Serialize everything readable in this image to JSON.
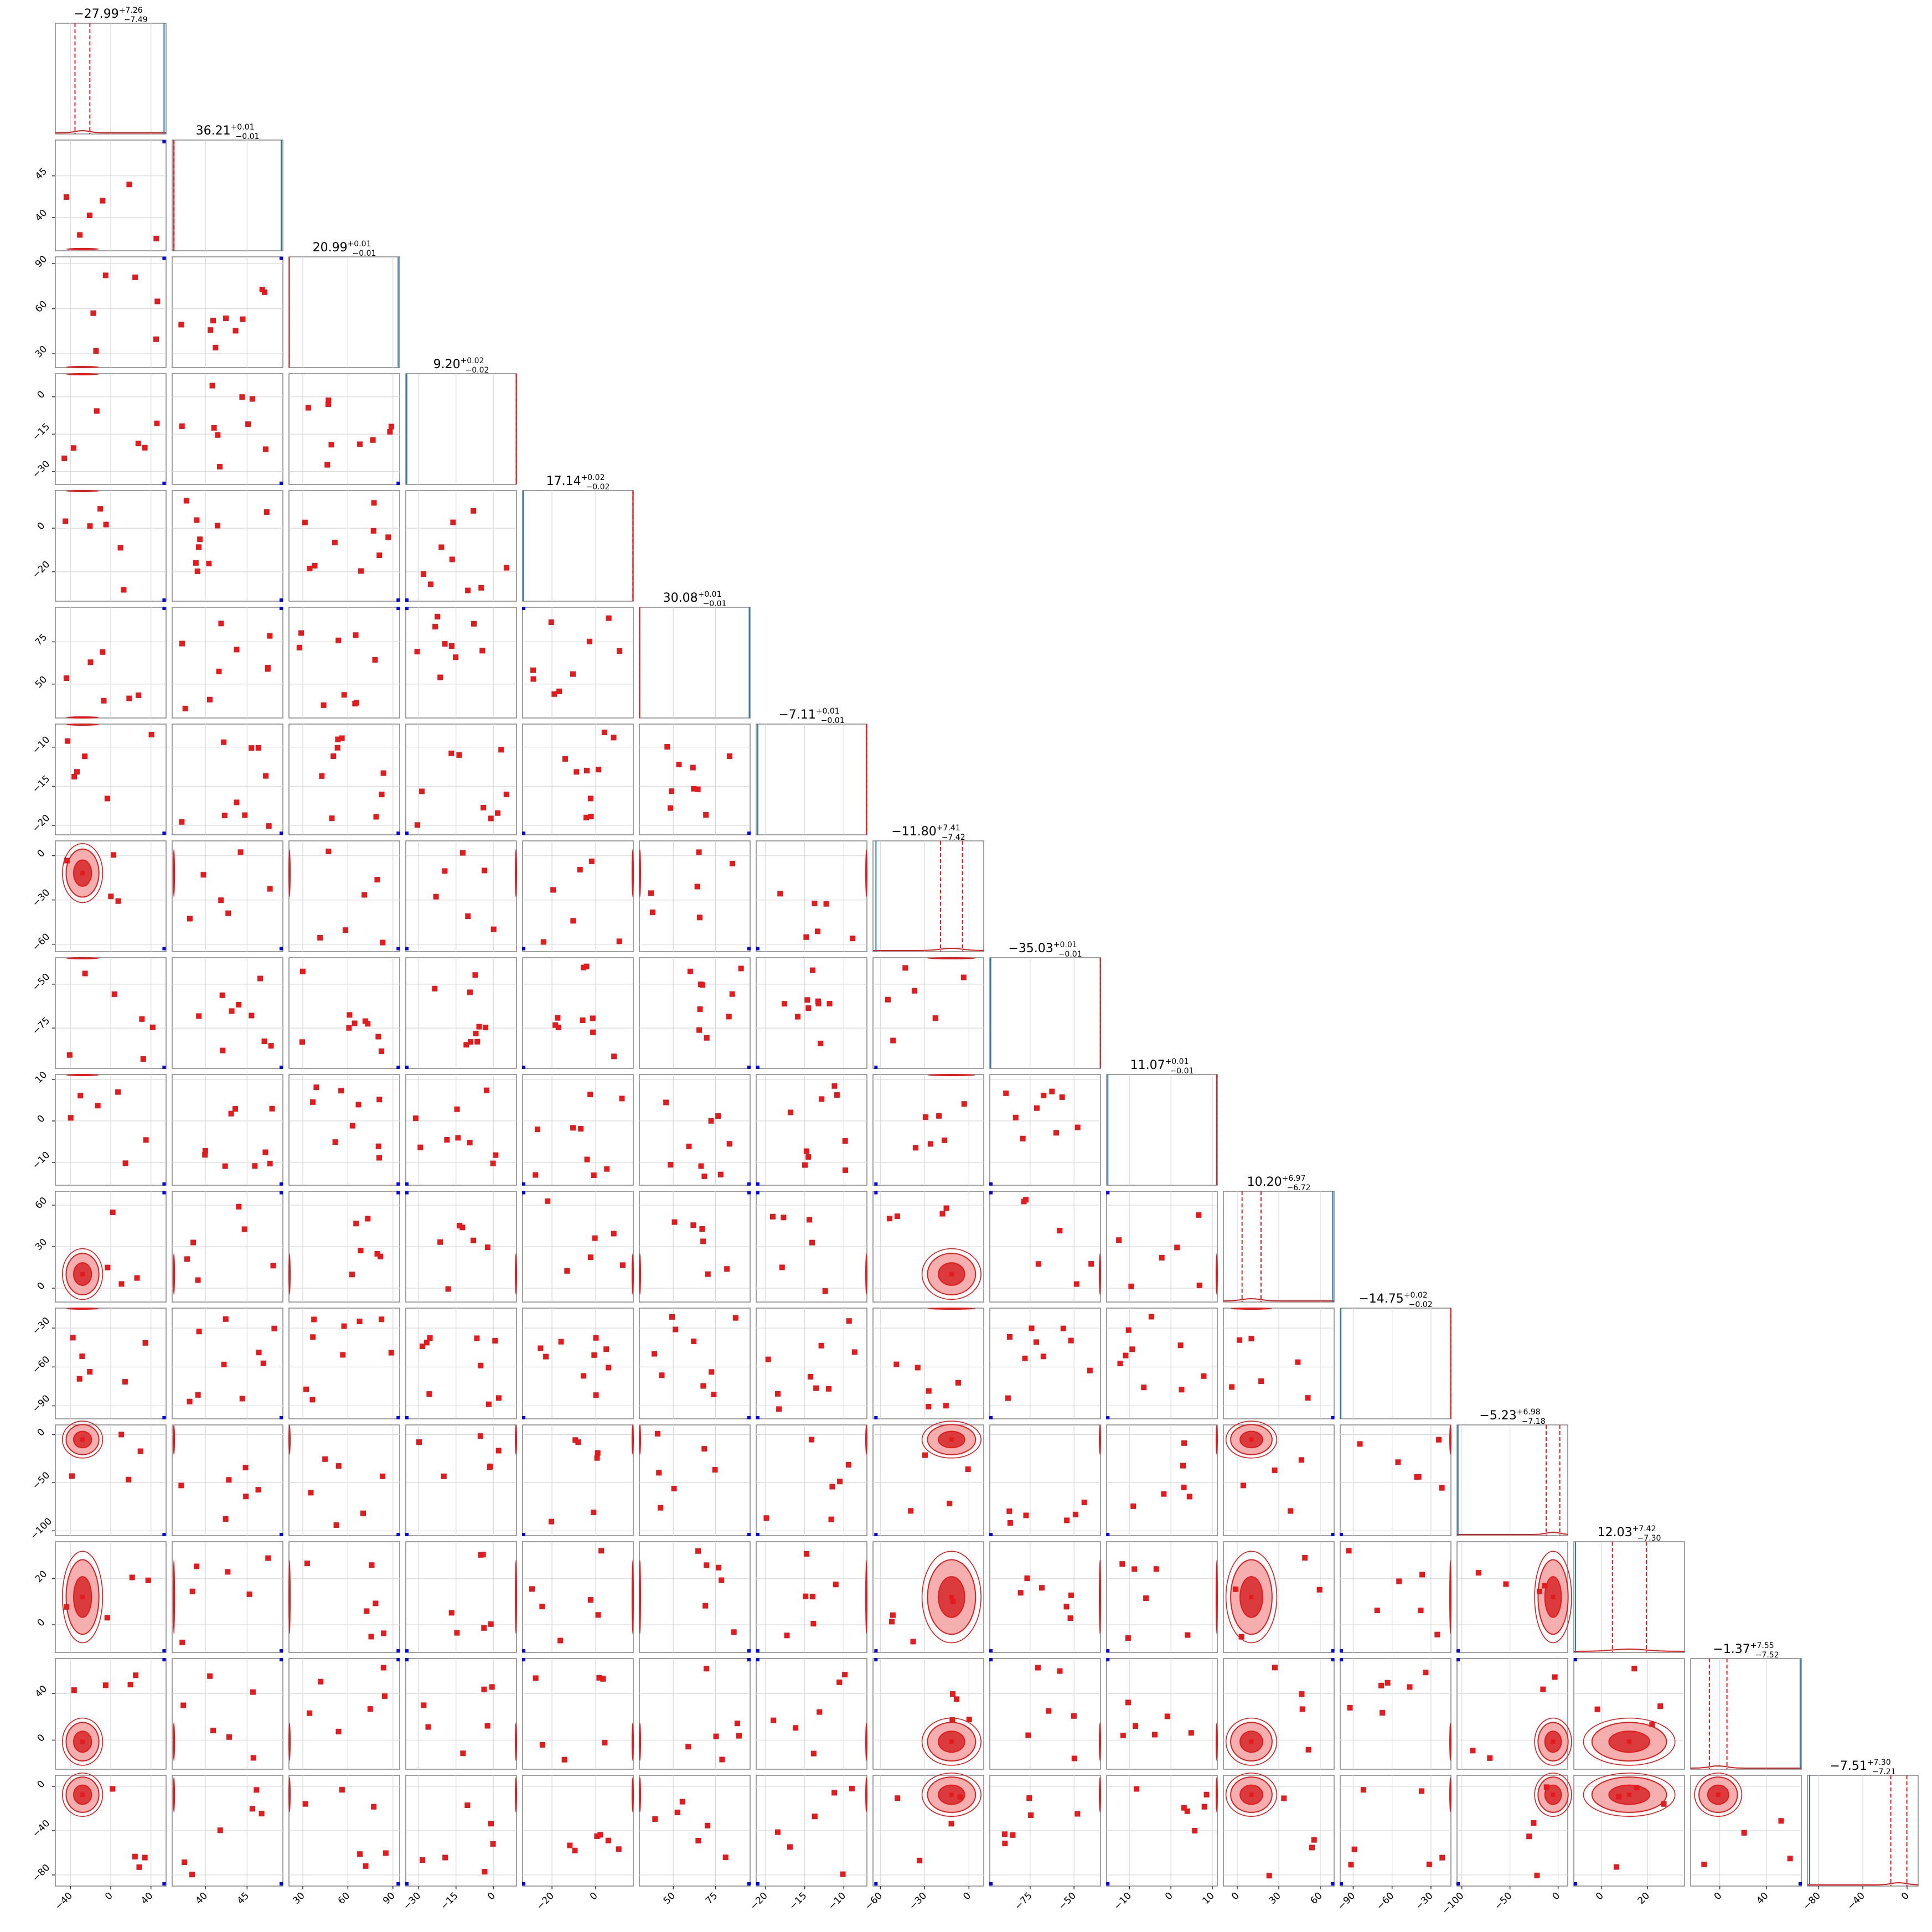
{
  "chart_data": {
    "type": "scatter",
    "kind": "corner-plot",
    "grid": true,
    "colors": {
      "main": "#e41a1c",
      "fill_dark": "#d62728",
      "fill_light": "#f4a6a6",
      "truth": "#1f77b4",
      "marker": "#0000ff",
      "grid": "#d9d9d9",
      "frame": "#8a8a8a"
    },
    "params": [
      {
        "title": "−27.99^{+7.26}_{−7.49}",
        "title_main": "−27.99",
        "title_up": "+7.26",
        "title_lo": "−7.49",
        "ticks": [
          -40,
          0,
          40
        ],
        "tick_labels": [
          "−40",
          "0",
          "40"
        ],
        "range": [
          -55,
          55
        ],
        "median": -27.99,
        "q_lo": -35.48,
        "q_hi": -20.73,
        "sigma": 7.4,
        "blob": true,
        "truth": 53
      },
      {
        "title": "36.21^{+0.01}_{−0.01}",
        "title_main": "36.21",
        "title_up": "+0.01",
        "title_lo": "−0.01",
        "ticks": [
          40,
          45
        ],
        "tick_labels": [
          "40",
          "45"
        ],
        "range": [
          36.0,
          49.3
        ],
        "median": 36.21,
        "q_lo": 36.2,
        "q_hi": 36.22,
        "sigma": 0.01,
        "blob": false,
        "truth": 49.1
      },
      {
        "title": "20.99^{+0.01}_{−0.01}",
        "title_main": "20.99",
        "title_up": "+0.01",
        "title_lo": "−0.01",
        "ticks": [
          30,
          60,
          90
        ],
        "tick_labels": [
          "30",
          "60",
          "90"
        ],
        "range": [
          20.8,
          94.5
        ],
        "median": 20.99,
        "q_lo": 20.98,
        "q_hi": 21.0,
        "sigma": 0.01,
        "blob": false,
        "truth": 93.5
      },
      {
        "title": "9.20^{+0.02}_{−0.02}",
        "title_main": "9.20",
        "title_up": "+0.02",
        "title_lo": "−0.02",
        "ticks": [
          -30,
          -15,
          0
        ],
        "tick_labels": [
          "−30",
          "−15",
          "0"
        ],
        "range": [
          -35.2,
          9.3
        ],
        "median": 9.2,
        "q_lo": 9.18,
        "q_hi": 9.22,
        "sigma": 0.02,
        "blob": false,
        "truth": -34.8
      },
      {
        "title": "17.14^{+0.02}_{−0.02}",
        "title_main": "17.14",
        "title_up": "+0.02",
        "title_lo": "−0.02",
        "ticks": [
          -20,
          0
        ],
        "tick_labels": [
          "−20",
          "0"
        ],
        "range": [
          -33.5,
          17.3
        ],
        "median": 17.14,
        "q_lo": 17.12,
        "q_hi": 17.16,
        "sigma": 0.02,
        "blob": false,
        "truth": -33.2
      },
      {
        "title": "30.08^{+0.01}_{−0.01}",
        "title_main": "30.08",
        "title_up": "+0.01",
        "title_lo": "−0.01",
        "ticks": [
          50,
          75
        ],
        "tick_labels": [
          "50",
          "75"
        ],
        "range": [
          29.9,
          95.5
        ],
        "median": 30.08,
        "q_lo": 30.07,
        "q_hi": 30.09,
        "sigma": 0.01,
        "blob": false,
        "truth": 95.0
      },
      {
        "title": "−7.11^{+0.01}_{−0.01}",
        "title_main": "−7.11",
        "title_up": "+0.01",
        "title_lo": "−0.01",
        "ticks": [
          -20,
          -15,
          -10
        ],
        "tick_labels": [
          "−20",
          "−15",
          "−10"
        ],
        "range": [
          -21.2,
          -7.05
        ],
        "median": -7.11,
        "q_lo": -7.12,
        "q_hi": -7.1,
        "sigma": 0.01,
        "blob": false,
        "truth": -21.0
      },
      {
        "title": "−11.80^{+7.41}_{−7.42}",
        "title_main": "−11.80",
        "title_up": "+7.41",
        "title_lo": "−7.42",
        "ticks": [
          -60,
          -30,
          0
        ],
        "tick_labels": [
          "−60",
          "−30",
          "0"
        ],
        "range": [
          -65,
          10
        ],
        "median": -11.8,
        "q_lo": -19.22,
        "q_hi": -4.39,
        "sigma": 7.4,
        "blob": true,
        "truth": -63
      },
      {
        "title": "−35.03^{+0.01}_{−0.01}",
        "title_main": "−35.03",
        "title_up": "+0.01",
        "title_lo": "−0.01",
        "ticks": [
          -75,
          -50
        ],
        "tick_labels": [
          "−75",
          "−50"
        ],
        "range": [
          -98,
          -34.9
        ],
        "median": -35.03,
        "q_lo": -35.04,
        "q_hi": -35.02,
        "sigma": 0.01,
        "blob": false,
        "truth": -97.5
      },
      {
        "title": "11.07^{+0.01}_{−0.01}",
        "title_main": "11.07",
        "title_up": "+0.01",
        "title_lo": "−0.01",
        "ticks": [
          -10,
          0,
          10
        ],
        "tick_labels": [
          "−10",
          "0",
          "10"
        ],
        "range": [
          -15.5,
          11.2
        ],
        "median": 11.07,
        "q_lo": 11.06,
        "q_hi": 11.08,
        "sigma": 0.01,
        "blob": false,
        "truth": -15.2
      },
      {
        "title": "10.20^{+6.97}_{−6.72}",
        "title_main": "10.20",
        "title_up": "+6.97",
        "title_lo": "−6.72",
        "ticks": [
          0,
          30,
          60
        ],
        "tick_labels": [
          "0",
          "30",
          "60"
        ],
        "range": [
          -10,
          70
        ],
        "median": 10.2,
        "q_lo": 3.48,
        "q_hi": 17.17,
        "sigma": 6.8,
        "blob": true,
        "truth": 69
      },
      {
        "title": "−14.75^{+0.02}_{−0.02}",
        "title_main": "−14.75",
        "title_up": "+0.02",
        "title_lo": "−0.02",
        "ticks": [
          -90,
          -60,
          -30
        ],
        "tick_labels": [
          "−90",
          "−60",
          "−30"
        ],
        "range": [
          -100,
          -14.6
        ],
        "median": -14.75,
        "q_lo": -14.77,
        "q_hi": -14.73,
        "sigma": 0.02,
        "blob": false,
        "truth": -99.5
      },
      {
        "title": "−5.23^{+6.98}_{−7.18}",
        "title_main": "−5.23",
        "title_up": "+6.98",
        "title_lo": "−7.18",
        "ticks": [
          -100,
          -50,
          0
        ],
        "tick_labels": [
          "−100",
          "−50",
          "0"
        ],
        "range": [
          -105,
          10
        ],
        "median": -5.23,
        "q_lo": -12.41,
        "q_hi": 1.75,
        "sigma": 7.1,
        "blob": true,
        "truth": -104
      },
      {
        "title": "12.03^{+7.42}_{−7.30}",
        "title_main": "12.03",
        "title_up": "+7.42",
        "title_lo": "−7.30",
        "ticks": [
          0,
          20
        ],
        "tick_labels": [
          "0",
          "20"
        ],
        "range": [
          -12,
          36
        ],
        "median": 12.03,
        "q_lo": 4.73,
        "q_hi": 19.45,
        "sigma": 7.35,
        "blob": true,
        "truth": -11.3
      },
      {
        "title": "−1.37^{+7.55}_{−7.52}",
        "title_main": "−1.37",
        "title_up": "+7.55",
        "title_lo": "−7.52",
        "ticks": [
          0,
          40
        ],
        "tick_labels": [
          "0",
          "40"
        ],
        "range": [
          -25,
          70
        ],
        "median": -1.37,
        "q_lo": -8.89,
        "q_hi": 6.18,
        "sigma": 7.5,
        "blob": true,
        "truth": 69
      },
      {
        "title": "−7.51^{+7.30}_{−7.21}",
        "title_main": "−7.51",
        "title_up": "+7.30",
        "title_lo": "−7.21",
        "ticks": [
          -80,
          -40,
          0
        ],
        "tick_labels": [
          "−80",
          "−40",
          "0"
        ],
        "range": [
          -90,
          10
        ],
        "median": -7.51,
        "q_lo": -14.72,
        "q_hi": -0.21,
        "sigma": 7.25,
        "blob": true,
        "truth": -88
      }
    ]
  }
}
